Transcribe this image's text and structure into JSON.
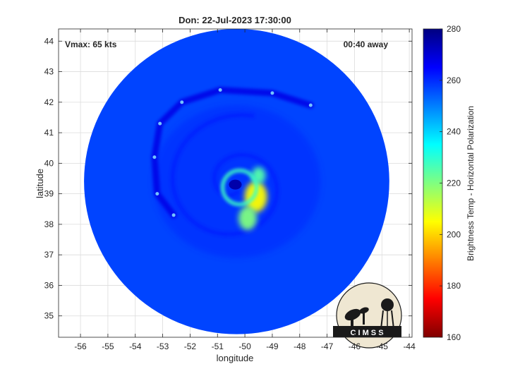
{
  "chart_data": {
    "type": "heatmap",
    "title": "Don: 22-Jul-2023 17:30:00",
    "xlabel": "longitude",
    "ylabel": "latitude",
    "xlim": [
      -56.8,
      -43.9
    ],
    "ylim": [
      34.3,
      44.4
    ],
    "xticks": [
      -56,
      -55,
      -54,
      -53,
      -52,
      -51,
      -50,
      -49,
      -48,
      -47,
      -46,
      -45,
      -44
    ],
    "yticks": [
      35,
      36,
      37,
      38,
      39,
      40,
      41,
      42,
      43,
      44
    ],
    "grid": true,
    "annotations": {
      "left": "Vmax: 65 kts",
      "right": "00:40 away"
    },
    "colorbar": {
      "label": "Brightness Temp - Horizontal Polarization",
      "min": 160,
      "max": 280,
      "ticks": [
        160,
        180,
        200,
        220,
        240,
        260,
        280
      ],
      "colormap": "jet"
    },
    "swath": {
      "center": [
        -50.3,
        39.4
      ],
      "radius_deg_lat": 5.0,
      "typical_value": 257
    },
    "storm": {
      "eye": [
        -50.35,
        39.3
      ],
      "warm_core": [
        {
          "lon": -49.6,
          "lat": 38.9,
          "value": 205
        },
        {
          "lon": -49.9,
          "lat": 38.2,
          "value": 220
        },
        {
          "lon": -49.5,
          "lat": 39.6,
          "value": 225
        }
      ],
      "cold_rainband": [
        {
          "lon": -52.6,
          "lat": 38.3
        },
        {
          "lon": -53.2,
          "lat": 39.0
        },
        {
          "lon": -53.3,
          "lat": 40.2
        },
        {
          "lon": -53.1,
          "lat": 41.3
        },
        {
          "lon": -52.3,
          "lat": 42.0
        },
        {
          "lon": -50.9,
          "lat": 42.4
        },
        {
          "lon": -49.0,
          "lat": 42.3
        },
        {
          "lon": -47.6,
          "lat": 41.9
        }
      ]
    }
  },
  "logo": {
    "text": "C I M S S"
  },
  "colors": {
    "frame": "#262626",
    "grid": "#dcdcdc",
    "logo_fill": "#efe7d2"
  }
}
